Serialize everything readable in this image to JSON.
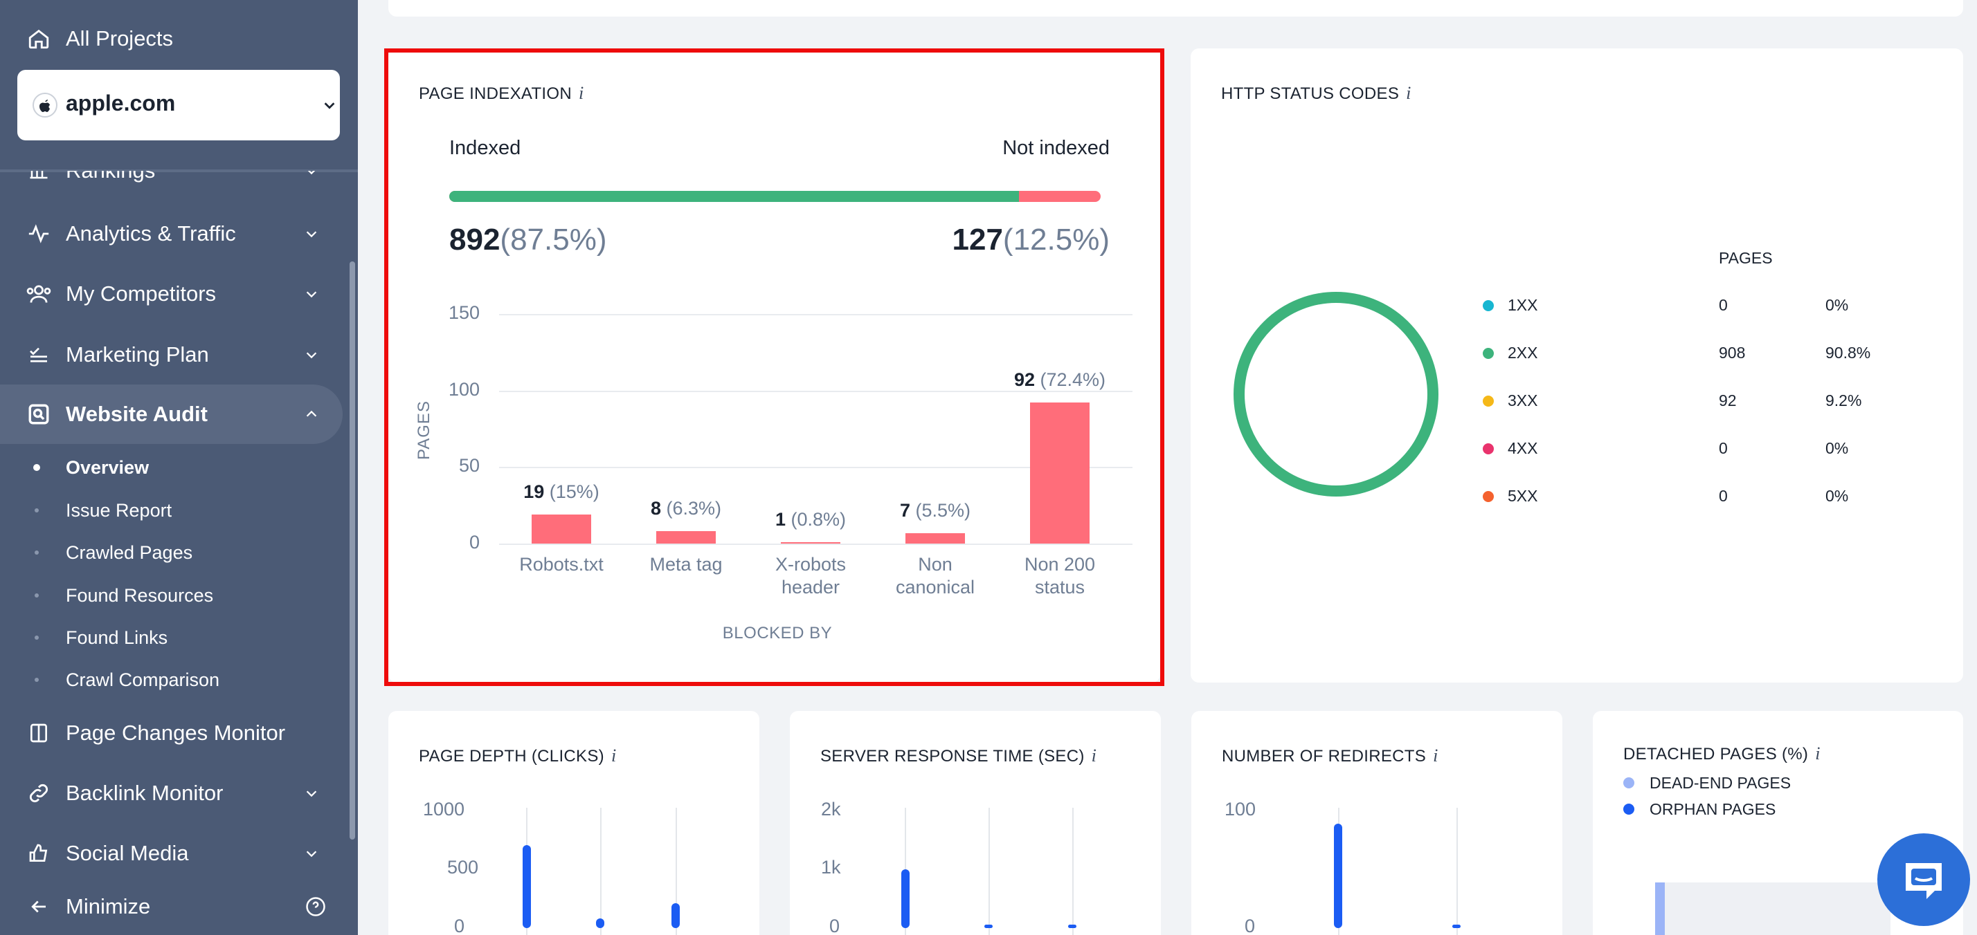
{
  "sidebar": {
    "all_projects": "All Projects",
    "project": "apple.com",
    "rankings": "Rankings",
    "analytics": "Analytics & Traffic",
    "competitors": "My Competitors",
    "marketing": "Marketing Plan",
    "website_audit": "Website Audit",
    "sub_items": [
      "Overview",
      "Issue Report",
      "Crawled Pages",
      "Found Resources",
      "Found Links",
      "Crawl Comparison"
    ],
    "page_changes": "Page Changes Monitor",
    "backlink": "Backlink Monitor",
    "social": "Social Media",
    "minimize": "Minimize"
  },
  "indexation": {
    "title": "PAGE INDEXATION",
    "info": "i",
    "indexed_label": "Indexed",
    "not_indexed_label": "Not indexed",
    "indexed_count": "892",
    "indexed_pct": "(87.5%)",
    "not_indexed_count": "127",
    "not_indexed_pct": "(12.5%)",
    "indexed_fraction": 0.875,
    "colors": {
      "indexed": "#3db37c",
      "not_indexed": "#ff6d7a"
    }
  },
  "chart_data": {
    "type": "bar",
    "ylabel": "PAGES",
    "xlabel": "BLOCKED BY",
    "ylim": [
      0,
      150
    ],
    "yticks": [
      "150",
      "100",
      "50",
      "0"
    ],
    "categories": [
      "Robots.txt",
      "Meta tag",
      "X-robots header",
      "Non canonical",
      "Non 200 status"
    ],
    "category_lines": [
      [
        "Robots.txt"
      ],
      [
        "Meta tag"
      ],
      [
        "X-robots",
        "header"
      ],
      [
        "Non",
        "canonical"
      ],
      [
        "Non 200",
        "status"
      ]
    ],
    "values": [
      19,
      8,
      1,
      7,
      92
    ],
    "value_labels": [
      "19",
      "8",
      "1",
      "7",
      "92"
    ],
    "pct_labels": [
      "(15%)",
      "(6.3%)",
      "(0.8%)",
      "(5.5%)",
      "(72.4%)"
    ]
  },
  "http": {
    "title": "HTTP STATUS CODES",
    "info": "i",
    "pages_header": "PAGES",
    "rows": [
      {
        "code": "1XX",
        "pages": "0",
        "pct": "0%",
        "color": "#17b6d1"
      },
      {
        "code": "2XX",
        "pages": "908",
        "pct": "90.8%",
        "color": "#3db37c"
      },
      {
        "code": "3XX",
        "pages": "92",
        "pct": "9.2%",
        "color": "#f5b818"
      },
      {
        "code": "4XX",
        "pages": "0",
        "pct": "0%",
        "color": "#e9336d"
      },
      {
        "code": "5XX",
        "pages": "0",
        "pct": "0%",
        "color": "#f4612e"
      }
    ]
  },
  "depth": {
    "title": "PAGE DEPTH (CLICKS)",
    "info": "i",
    "ticks": [
      "1000",
      "500",
      "0"
    ]
  },
  "server": {
    "title": "SERVER RESPONSE TIME (SEC)",
    "info": "i",
    "ticks": [
      "2k",
      "1k",
      "0"
    ]
  },
  "redirects": {
    "title": "NUMBER OF REDIRECTS",
    "info": "i",
    "ticks": [
      "100",
      "0"
    ]
  },
  "detached": {
    "title": "DETACHED PAGES (%)",
    "info": "i",
    "legend": [
      {
        "label": "DEAD-END PAGES",
        "color": "#9bb4f7"
      },
      {
        "label": "ORPHAN PAGES",
        "color": "#1b5cf3"
      }
    ]
  }
}
